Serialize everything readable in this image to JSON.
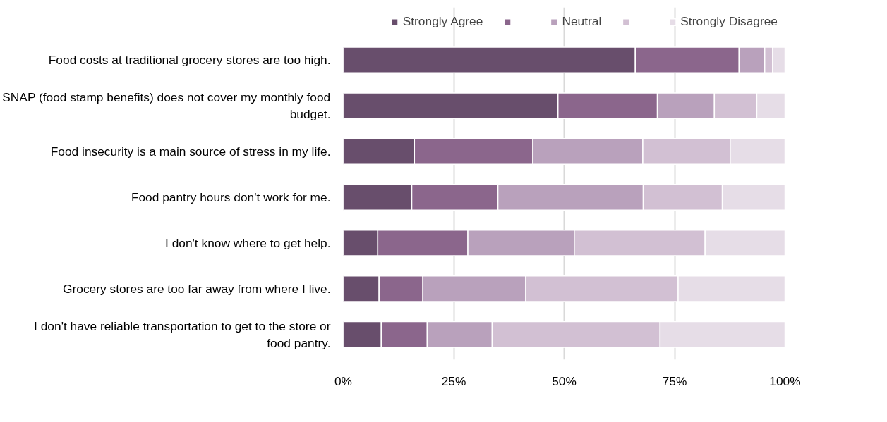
{
  "chart_data": {
    "type": "bar",
    "orientation": "horizontal",
    "stacked": true,
    "categories": [
      "Food costs at traditional grocery stores are too high.",
      "SNAP (food stamp benefits) does not cover my monthly food budget.",
      "Food insecurity is a main source of stress in my life.",
      "Food pantry hours don't work for me.",
      "I don't know where to get help.",
      "Grocery stores are too far away from where I live.",
      "I don't have reliable transportation to get to the store or food pantry."
    ],
    "series": [
      {
        "name": "Strongly Agree",
        "color": "#684e6c",
        "values": [
          66.1,
          48.6,
          16.1,
          15.5,
          7.8,
          8.1,
          8.6
        ]
      },
      {
        "color": "#8b668c",
        "values": [
          23.5,
          22.5,
          26.8,
          19.5,
          20.4,
          9.9,
          10.4
        ]
      },
      {
        "name": "Neutral",
        "color": "#b9a1bc",
        "values": [
          5.8,
          12.9,
          24.9,
          32.9,
          24.1,
          23.3,
          14.7
        ]
      },
      {
        "color": "#d2c0d3",
        "values": [
          1.8,
          9.6,
          19.8,
          17.9,
          29.6,
          34.5,
          38.0
        ]
      },
      {
        "name": "Strongly Disagree",
        "color": "#e6dde7",
        "values": [
          2.8,
          6.4,
          12.4,
          14.2,
          18.1,
          24.2,
          28.3
        ]
      }
    ],
    "xlim": [
      0,
      100
    ],
    "xticks": [
      {
        "value": 0,
        "label": "0%"
      },
      {
        "value": 25,
        "label": "25%"
      },
      {
        "value": 50,
        "label": "50%"
      },
      {
        "value": 75,
        "label": "75%"
      },
      {
        "value": 100,
        "label": "100%"
      }
    ],
    "grid": "x",
    "legend": "top right"
  }
}
